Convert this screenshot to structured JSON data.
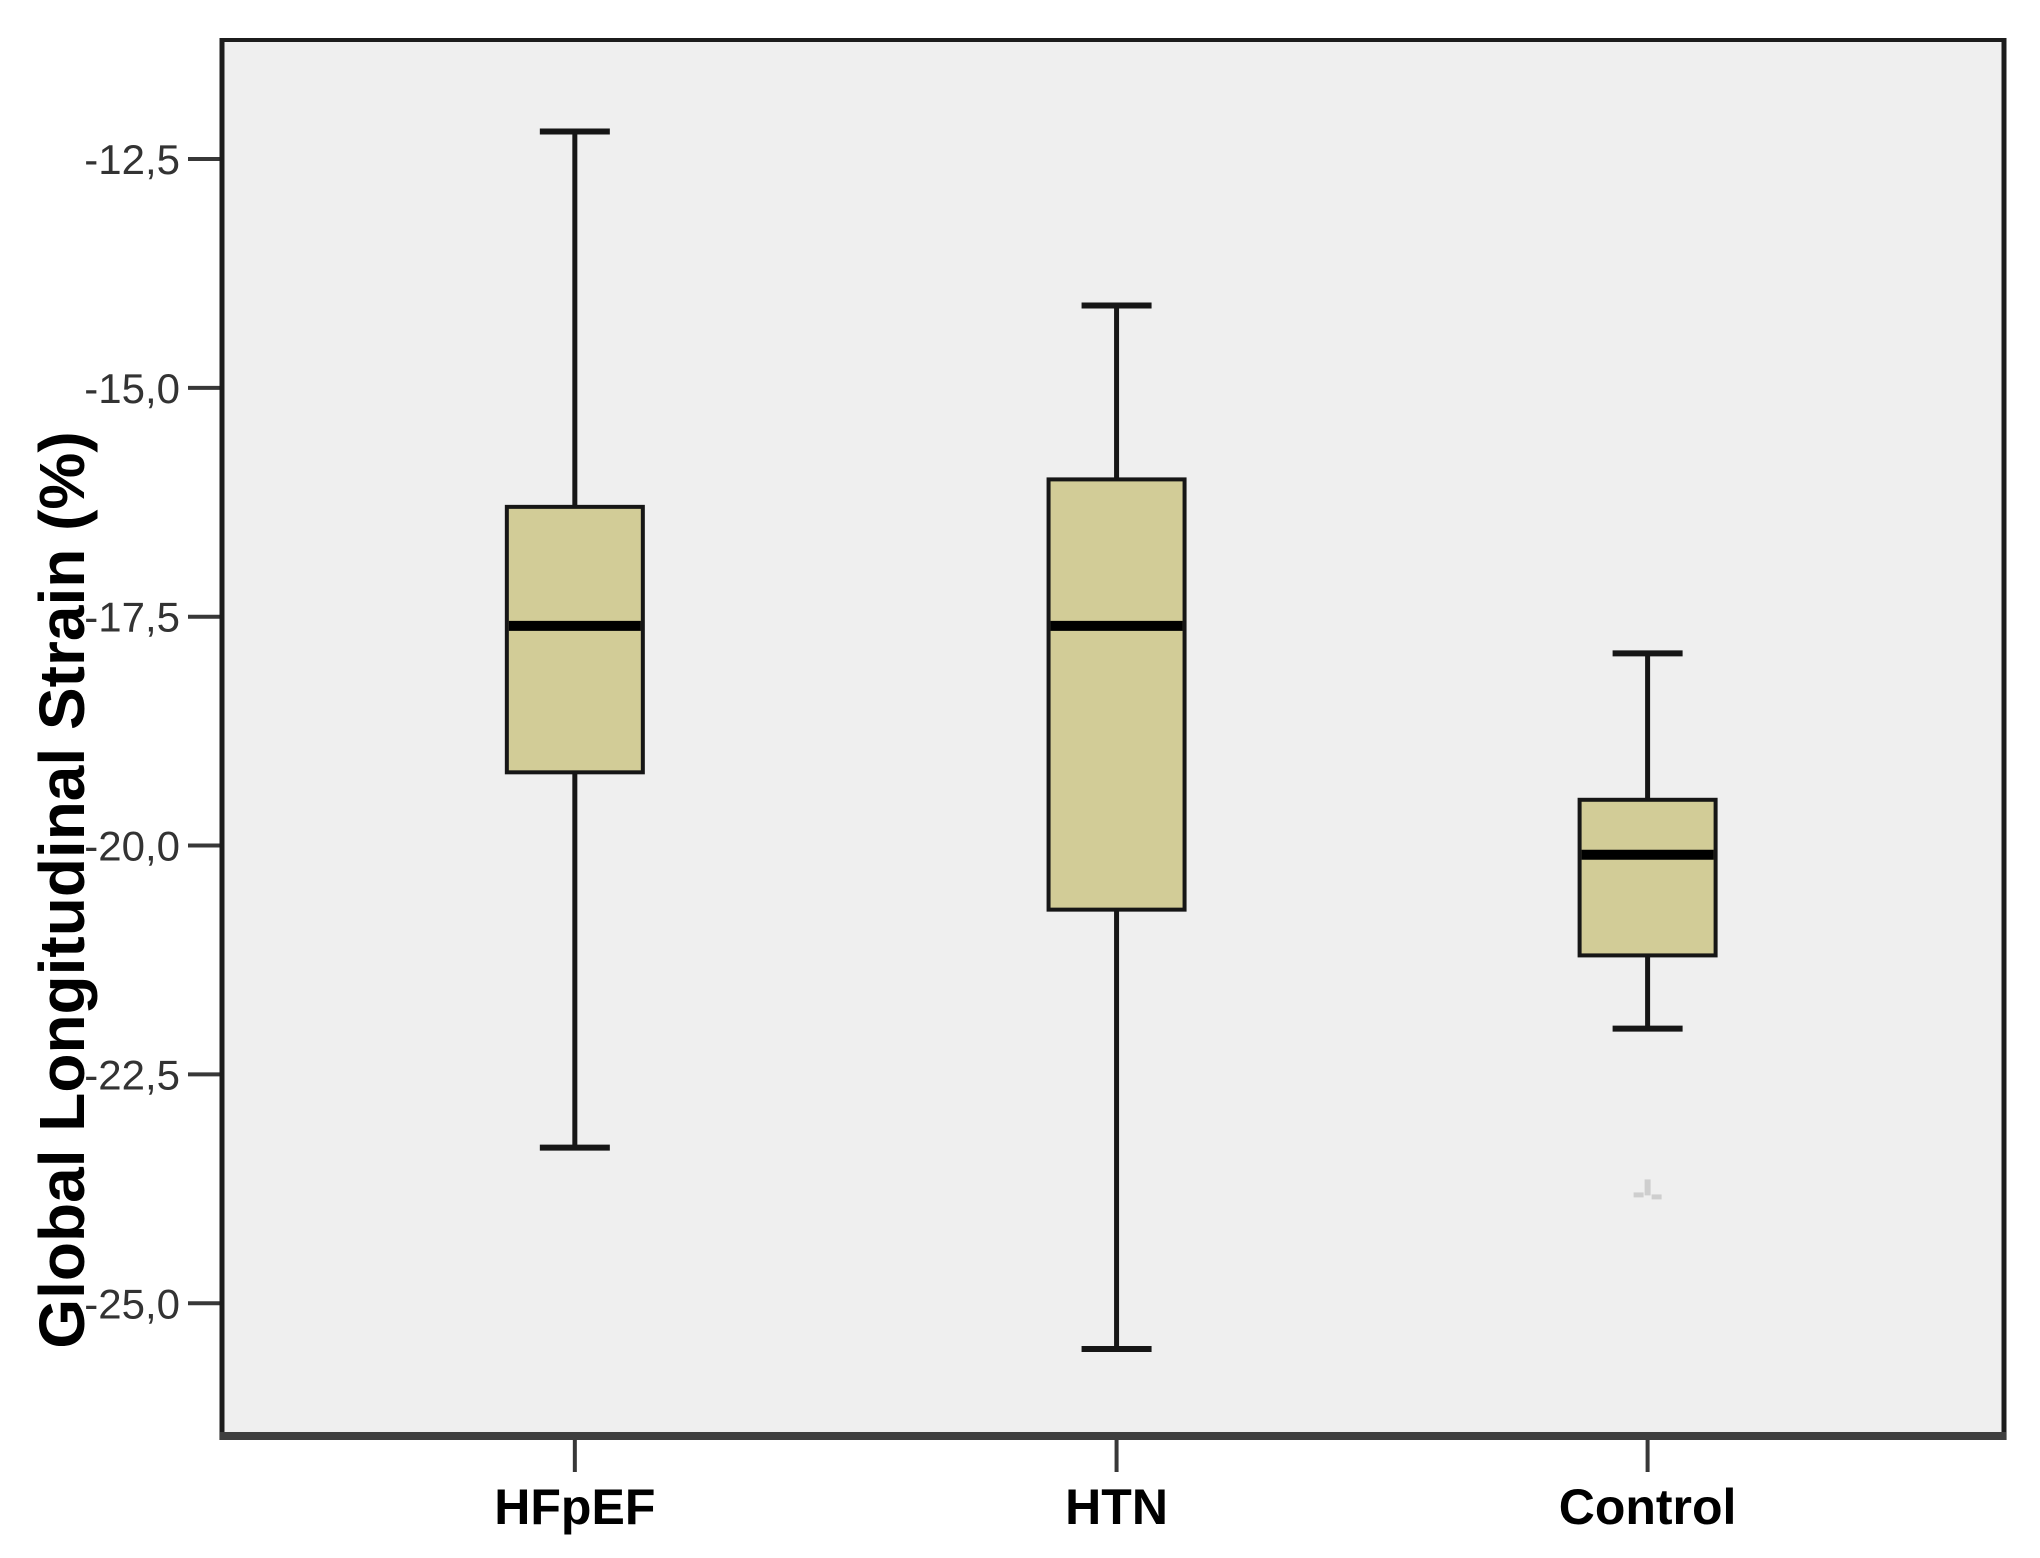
{
  "figure": {
    "background": "#ffffff"
  },
  "chart_data": {
    "type": "boxplot",
    "title": "",
    "xlabel": "",
    "ylabel": "Global Longitudinal Strain (%)",
    "categories": [
      "HFpEF",
      "HTN",
      "Control"
    ],
    "ylim": [
      -26.45,
      -11.2
    ],
    "grid": false,
    "legend": null,
    "y_ticks": [
      {
        "value": -12.5,
        "label": "-12,5"
      },
      {
        "value": -15.0,
        "label": "-15,0"
      },
      {
        "value": -17.5,
        "label": "-17,5"
      },
      {
        "value": -20.0,
        "label": "-20,0"
      },
      {
        "value": -22.5,
        "label": "-22,5"
      },
      {
        "value": -25.0,
        "label": "-25,0"
      }
    ],
    "series": [
      {
        "category": "HFpEF",
        "whisker_low": -23.3,
        "q1": -19.2,
        "median": -17.6,
        "q3": -16.3,
        "whisker_high": -12.2
      },
      {
        "category": "HTN",
        "whisker_low": -25.5,
        "q1": -20.7,
        "median": -17.6,
        "q3": -16.0,
        "whisker_high": -14.1
      },
      {
        "category": "Control",
        "whisker_low": -22.0,
        "q1": -21.2,
        "median": -20.1,
        "q3": -19.5,
        "whisker_high": -17.9
      }
    ],
    "artifact": {
      "description": "faint gray smudge mark below Control box",
      "near_category": "Control",
      "value": -23.8
    },
    "colors": {
      "plot_background": "#efefef",
      "box_fill": "#d2cc97",
      "box_border": "#161616",
      "median": "#000000",
      "whisker": "#161616",
      "axis_frame": "#1c1c1c",
      "axis_frame_bottom": "#3f3f3f",
      "tick": "#383838",
      "tick_label": "#333333",
      "category_label": "#000000",
      "ylabel_color": "#000000",
      "artifact": "#c9c9c9"
    }
  }
}
